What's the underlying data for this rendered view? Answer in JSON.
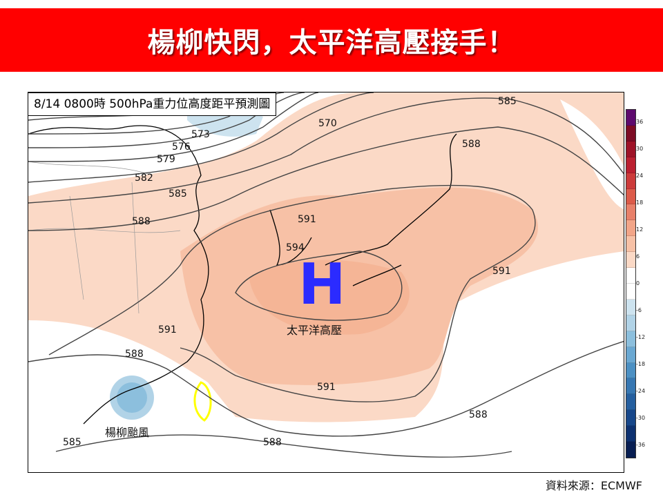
{
  "banner": {
    "title": "楊柳快閃，太平洋高壓接手！"
  },
  "map": {
    "title": "8/14  0800時  500hPa重力位高度距平預測圖",
    "high_symbol": "H",
    "high_label": "太平洋高壓",
    "typhoon_label": "楊柳颱風",
    "contour_labels": [
      "570",
      "573",
      "576",
      "579",
      "582",
      "585",
      "585",
      "585",
      "588",
      "588",
      "588",
      "588",
      "588",
      "591",
      "591",
      "591",
      "591",
      "594"
    ]
  },
  "colorbar": {
    "ticks": [
      "36",
      "30",
      "24",
      "18",
      "12",
      "6",
      "0",
      "-6",
      "-12",
      "-18",
      "-24",
      "-30",
      "-36"
    ],
    "colors": [
      "#5e0a6e",
      "#7d0c25",
      "#9e1328",
      "#bb2031",
      "#cc3b3b",
      "#dc5b4a",
      "#e8806a",
      "#f2a588",
      "#f7c1a6",
      "#fbd9c6",
      "#ffffff",
      "#ffffff",
      "#cde3ef",
      "#b1d3e7",
      "#8cbfdd",
      "#6aa8d2",
      "#4c90c3",
      "#3777b2",
      "#255f9f",
      "#17478a",
      "#0d3170",
      "#081e52"
    ]
  },
  "source": "資料來源：ECMWF"
}
